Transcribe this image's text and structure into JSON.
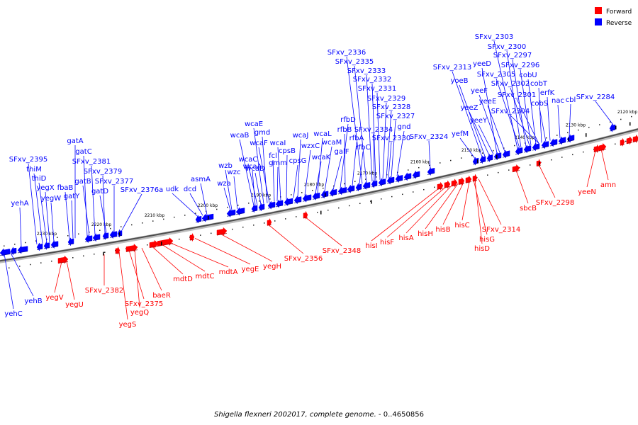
{
  "legend": {
    "forward": {
      "label": "Forward",
      "color": "#ff0000"
    },
    "reverse": {
      "label": "Reverse",
      "color": "#0000ff"
    }
  },
  "caption": {
    "organism": "Shigella flexneri 2002017, complete genome.",
    "range": " - 0..4650856"
  },
  "ruler": {
    "ticks": [
      "2120 kbp",
      "2130 kbp",
      "2140 kbp",
      "2150 kbp",
      "2160 kbp",
      "2170 kbp",
      "2180 kbp",
      "2190 kbp",
      "2200 kbp",
      "2210 kbp",
      "2220 kbp",
      "2230 kbp"
    ]
  },
  "reverse_genes": [
    "yehA",
    "SFxv_2395",
    "thiM",
    "thiD",
    "yegX",
    "yegW",
    "fbaB",
    "gatY",
    "gatA",
    "gatC",
    "gatB",
    "SFxv_2381",
    "SFxv_2379",
    "gatD",
    "SFxv_2377",
    "SFxv_2376a",
    "udk",
    "dcd",
    "asmA",
    "wza",
    "wzb",
    "wzc",
    "wcaA",
    "wcaB",
    "wcaC",
    "wcaD",
    "wcaE",
    "gmd",
    "wcaF",
    "fcl",
    "gmm",
    "wcaI",
    "cpsB",
    "cpsG",
    "wcaJ",
    "wzxC",
    "wcaK",
    "wcaL",
    "wcaM",
    "galF",
    "rfbD",
    "rfbB",
    "rfbA",
    "rfbC",
    "SFxv_2336",
    "SFxv_2335",
    "SFxv_2333",
    "SFxv_2332",
    "SFxv_2331",
    "SFxv_2329",
    "SFxv_2328",
    "SFxv_2327",
    "SFxv_2334",
    "gnd",
    "SFxv_2330",
    "SFxv_2324",
    "yefM",
    "SFxv_2313",
    "yoeB",
    "yeeZ",
    "yeeY",
    "yeeD",
    "yeeF",
    "yeeE",
    "SFxv_2303",
    "SFxv_2300",
    "SFxv_2297",
    "SFxv_2296",
    "SFxv_2305",
    "cobU",
    "SFxv_2302",
    "cobT",
    "SFxv_2301",
    "erfK",
    "cobS",
    "nac",
    "cbl",
    "SFxv_2304",
    "SFxv_2284",
    "yehB",
    "yehC"
  ],
  "forward_genes": [
    "yegV",
    "yegU",
    "SFxv_2382",
    "yegS",
    "SFxv_2375",
    "yegQ",
    "baeR",
    "mdtD",
    "mdtC",
    "mdtA",
    "yegE",
    "yegH",
    "SFxv_2356",
    "SFxv_2348",
    "hisI",
    "hisF",
    "hisA",
    "hisH",
    "hisB",
    "hisC",
    "hisG",
    "hisD",
    "SFxv_2314",
    "sbcB",
    "SFxv_2298",
    "yeeN",
    "amn"
  ]
}
